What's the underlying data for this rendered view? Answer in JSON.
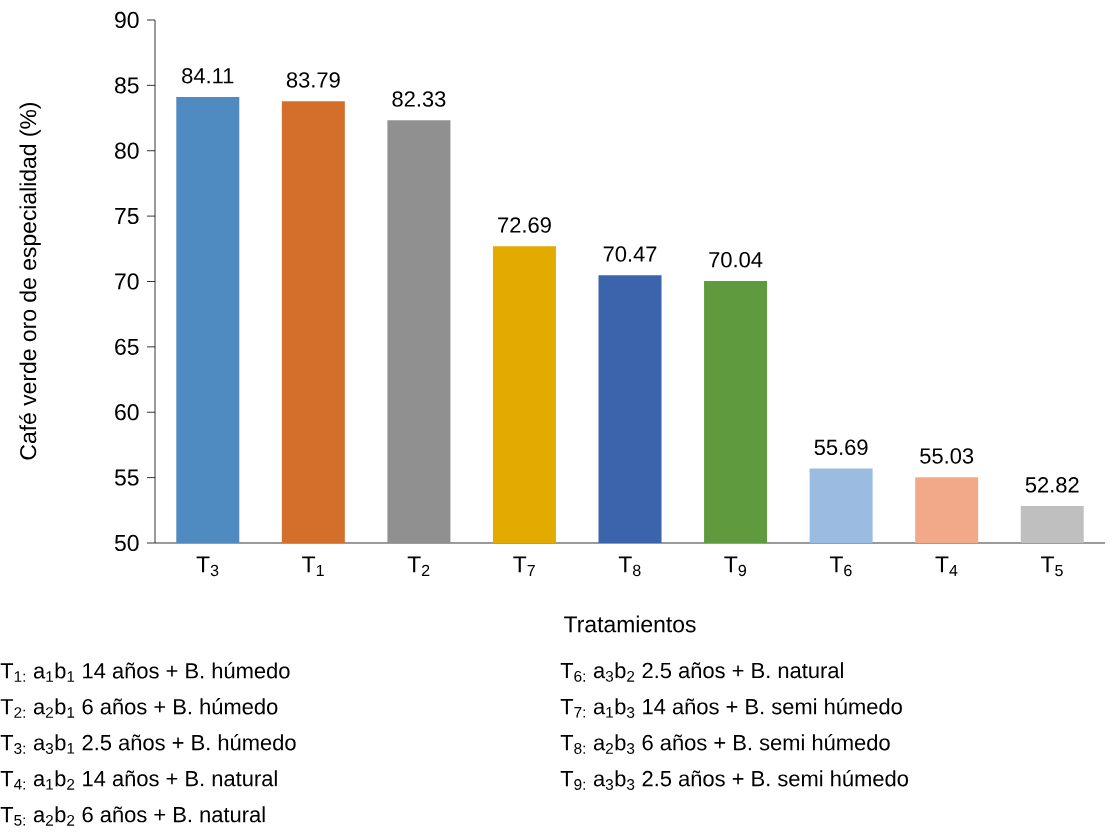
{
  "chart_data": {
    "type": "bar",
    "xlabel": "Tratamientos",
    "ylabel": "Café verde oro de especialidad (%)",
    "categories": [
      "T$_{3}$",
      "T$_{1}$",
      "T$_{2}$",
      "T$_{7}$",
      "T$_{8}$",
      "T$_{9}$",
      "T$_{6}$",
      "T$_{4}$",
      "T$_{5}$"
    ],
    "values": [
      84.11,
      83.79,
      82.33,
      72.69,
      70.47,
      70.04,
      55.69,
      55.03,
      52.82
    ],
    "colors": [
      "#4f8bc0",
      "#d46f2b",
      "#909090",
      "#e3aa00",
      "#3b64ad",
      "#5f9a3f",
      "#9bbbe1",
      "#f1a98a",
      "#bfbfbf"
    ],
    "ylim": [
      50,
      90
    ],
    "yticks": [
      50,
      55,
      60,
      65,
      70,
      75,
      80,
      85,
      90
    ],
    "data_labels": true,
    "grid": false,
    "annotations": [
      "T$_{1:}$  a$_{1}$b$_{1}$  14 años + B. húmedo",
      "T$_{2:}$  a$_{2}$b$_{1}$  6 años + B. húmedo",
      "T$_{3:}$  a$_{3}$b$_{1}$  2.5 años + B. húmedo",
      "T$_{4:}$  a$_{1}$b$_{2}$  14 años + B. natural",
      "T$_{5:}$  a$_{2}$b$_{2}$  6 años + B. natural",
      "T$_{6:}$  a$_{3}$b$_{2}$  2.5 años + B. natural",
      "T$_{7:}$  a$_{1}$b$_{3}$  14 años + B. semi húmedo",
      "T$_{8:}$  a$_{2}$b$_{3}$  6 años + B. semi húmedo",
      "T$_{9:}$  a$_{3}$b$_{3}$  2.5 años + B. semi húmedo"
    ]
  }
}
